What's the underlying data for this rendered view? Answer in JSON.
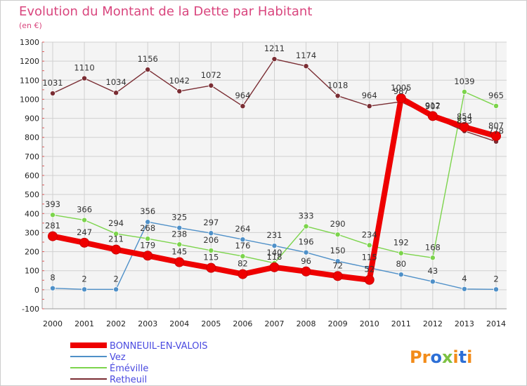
{
  "chart_data": {
    "type": "line",
    "title": "Evolution du Montant de la Dette par Habitant",
    "subtitle": "(en €)",
    "x": [
      "2000",
      "2001",
      "2002",
      "2003",
      "2004",
      "2005",
      "2006",
      "2007",
      "2008",
      "2009",
      "2010",
      "2011",
      "2012",
      "2013",
      "2014"
    ],
    "ylim": [
      -100,
      1300
    ],
    "yticks": [
      -100,
      0,
      100,
      200,
      300,
      400,
      500,
      600,
      700,
      800,
      900,
      1000,
      1100,
      1200,
      1300
    ],
    "grid": true,
    "legend_position": "bottom-left",
    "series": [
      {
        "name": "BONNEUIL-EN-VALOIS",
        "color": "#ee0000",
        "bold": true,
        "values": [
          281,
          247,
          211,
          179,
          145,
          115,
          82,
          118,
          96,
          72,
          52,
          1005,
          912,
          854,
          807
        ]
      },
      {
        "name": "Vez",
        "color": "#4f90c8",
        "values": [
          8,
          2,
          2,
          356,
          325,
          297,
          264,
          231,
          196,
          150,
          115,
          80,
          43,
          4,
          2
        ]
      },
      {
        "name": "Éméville",
        "color": "#7cd44c",
        "values": [
          393,
          366,
          294,
          268,
          238,
          206,
          176,
          140,
          333,
          290,
          234,
          192,
          168,
          1039,
          965
        ]
      },
      {
        "name": "Retheuil",
        "color": "#7a2d33",
        "values": [
          1031,
          1110,
          1034,
          1156,
          1042,
          1072,
          964,
          1211,
          1174,
          1018,
          964,
          987,
          907,
          833,
          778
        ]
      }
    ]
  },
  "logo": {
    "text": "Proxiti",
    "letters": [
      "P",
      "r",
      "o",
      "x",
      "i",
      "t",
      "i"
    ]
  }
}
